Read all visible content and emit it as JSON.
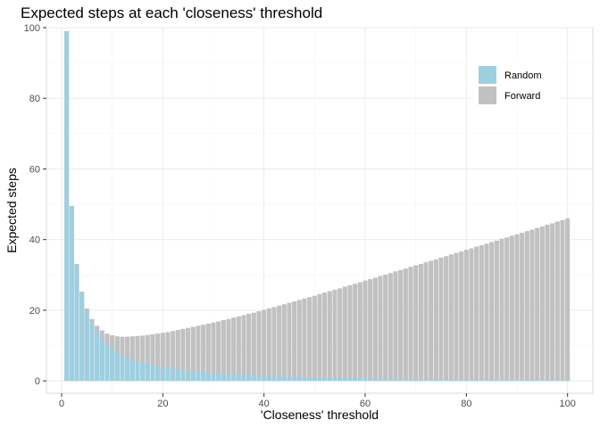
{
  "chart_data": {
    "type": "bar",
    "title": "Expected steps at each 'closeness' threshold",
    "xlabel": "'Closeness' threshold",
    "ylabel": "Expected steps",
    "xlim": [
      -3,
      105
    ],
    "ylim": [
      -3.5,
      100
    ],
    "x_ticks": [
      0,
      20,
      40,
      60,
      80,
      100
    ],
    "y_ticks": [
      0,
      20,
      40,
      60,
      80,
      100
    ],
    "grid": true,
    "legend_position": "top-right",
    "colors": {
      "Random": "#9ecfe0",
      "Forward": "#c1c1c1"
    },
    "legend": [
      "Random",
      "Forward"
    ],
    "x": [
      1,
      2,
      3,
      4,
      5,
      6,
      7,
      8,
      9,
      10,
      11,
      12,
      13,
      14,
      15,
      16,
      17,
      18,
      19,
      20,
      21,
      22,
      23,
      24,
      25,
      26,
      27,
      28,
      29,
      30,
      31,
      32,
      33,
      34,
      35,
      36,
      37,
      38,
      39,
      40,
      41,
      42,
      43,
      44,
      45,
      46,
      47,
      48,
      49,
      50,
      51,
      52,
      53,
      54,
      55,
      56,
      57,
      58,
      59,
      60,
      61,
      62,
      63,
      64,
      65,
      66,
      67,
      68,
      69,
      70,
      71,
      72,
      73,
      74,
      75,
      76,
      77,
      78,
      79,
      80,
      81,
      82,
      83,
      84,
      85,
      86,
      87,
      88,
      89,
      90,
      91,
      92,
      93,
      94,
      95,
      96,
      97,
      98,
      99,
      100
    ],
    "series": [
      {
        "name": "Forward",
        "values": [
          99.0,
          49.5,
          33.1,
          25.3,
          20.5,
          17.5,
          15.6,
          14.3,
          13.4,
          12.9,
          12.6,
          12.5,
          12.5,
          12.6,
          12.7,
          12.8,
          13.0,
          13.2,
          13.4,
          13.6,
          13.8,
          14.1,
          14.4,
          14.7,
          15.0,
          15.3,
          15.6,
          15.9,
          16.2,
          16.5,
          16.8,
          17.2,
          17.5,
          17.9,
          18.2,
          18.6,
          19.0,
          19.3,
          19.7,
          20.1,
          20.5,
          20.9,
          21.3,
          21.7,
          22.1,
          22.5,
          22.9,
          23.3,
          23.7,
          24.1,
          24.6,
          25.0,
          25.4,
          25.8,
          26.2,
          26.7,
          27.1,
          27.5,
          27.9,
          28.4,
          28.8,
          29.2,
          29.7,
          30.1,
          30.5,
          31.0,
          31.4,
          31.8,
          32.3,
          32.7,
          33.1,
          33.6,
          34.0,
          34.4,
          34.9,
          35.3,
          35.8,
          36.2,
          36.6,
          37.1,
          37.5,
          38.0,
          38.4,
          38.8,
          39.3,
          39.7,
          40.2,
          40.6,
          41.1,
          41.5,
          41.9,
          42.4,
          42.8,
          43.3,
          43.7,
          44.2,
          44.6,
          45.1,
          45.5,
          46.0
        ]
      },
      {
        "name": "Random",
        "values": [
          99.0,
          49.5,
          33.0,
          24.7,
          19.7,
          16.3,
          13.8,
          11.9,
          10.4,
          9.2,
          8.2,
          7.4,
          6.7,
          6.1,
          5.6,
          5.2,
          4.8,
          4.5,
          4.2,
          3.9,
          3.7,
          3.5,
          3.3,
          3.1,
          2.9,
          2.8,
          2.6,
          2.5,
          2.4,
          2.3,
          2.2,
          2.1,
          2.0,
          1.9,
          1.8,
          1.75,
          1.7,
          1.6,
          1.55,
          1.5,
          1.45,
          1.4,
          1.35,
          1.3,
          1.25,
          1.2,
          1.15,
          1.1,
          1.08,
          1.05,
          1.0,
          0.97,
          0.94,
          0.91,
          0.88,
          0.85,
          0.82,
          0.8,
          0.78,
          0.75,
          0.73,
          0.71,
          0.69,
          0.67,
          0.65,
          0.63,
          0.61,
          0.59,
          0.57,
          0.56,
          0.54,
          0.52,
          0.51,
          0.49,
          0.48,
          0.46,
          0.45,
          0.43,
          0.42,
          0.41,
          0.4,
          0.38,
          0.37,
          0.36,
          0.35,
          0.34,
          0.33,
          0.32,
          0.31,
          0.3,
          0.29,
          0.28,
          0.27,
          0.26,
          0.25,
          0.24,
          0.23,
          0.22,
          0.21,
          0.2
        ]
      }
    ]
  }
}
